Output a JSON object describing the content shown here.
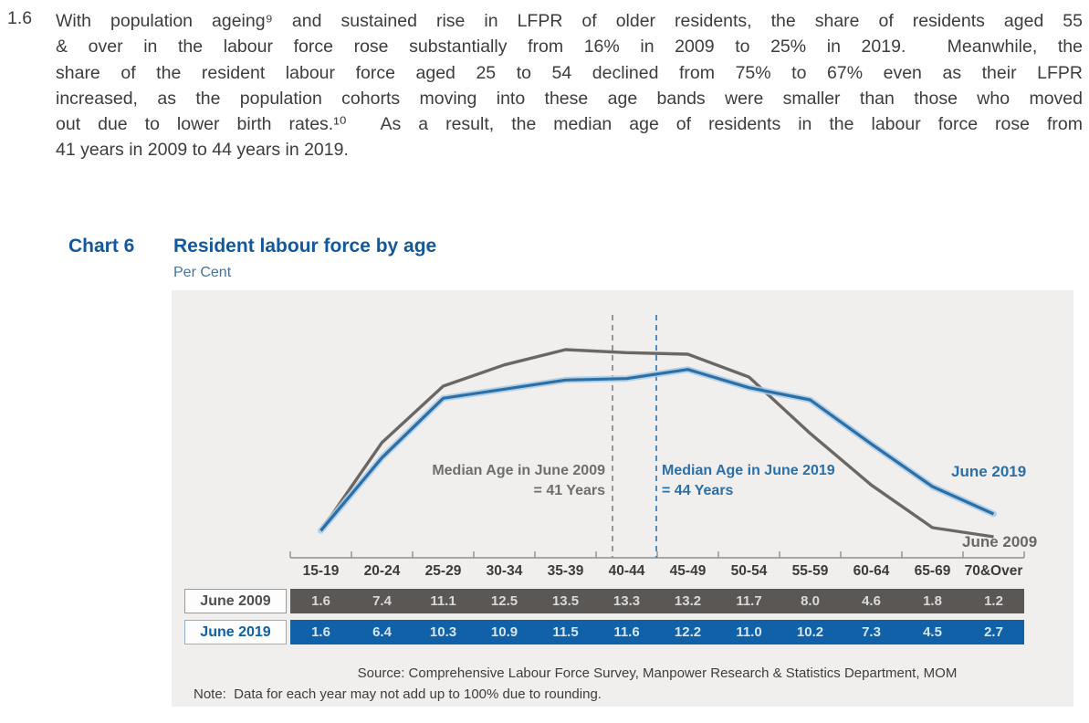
{
  "paragraph": {
    "number": "1.6",
    "lines": [
      "With population ageing⁹ and sustained rise in LFPR of older residents, the share of residents aged 55",
      "& over in the labour force rose substantially from 16% in 2009 to 25% in 2019.  Meanwhile, the",
      "share of the resident labour force aged 25 to 54 declined from 75% to 67% even as their LFPR",
      "increased, as the population cohorts moving into these age bands were smaller than those who moved",
      "out due to lower birth rates.¹⁰  As a result, the median age of residents in the labour force rose from",
      "41 years in 2009 to 44 years in 2019."
    ]
  },
  "chart_header": {
    "label": "Chart 6",
    "title": "Resident labour force by age",
    "unit": "Per Cent"
  },
  "chart_data": {
    "type": "line",
    "title": "Resident labour force by age",
    "ylabel": "Per Cent",
    "xlabel": "",
    "ylim": [
      0,
      14.5
    ],
    "grid": false,
    "categories": [
      "15-19",
      "20-24",
      "25-29",
      "30-34",
      "35-39",
      "40-44",
      "45-49",
      "50-54",
      "55-59",
      "60-64",
      "65-69",
      "70&Over"
    ],
    "series": [
      {
        "name": "June 2009",
        "color": "#6b6764",
        "values": [
          1.6,
          7.4,
          11.1,
          12.5,
          13.5,
          13.3,
          13.2,
          11.7,
          8.0,
          4.6,
          1.8,
          1.2
        ]
      },
      {
        "name": "June 2019",
        "color": "#2b6fa8",
        "values": [
          1.6,
          6.4,
          10.3,
          10.9,
          11.5,
          11.6,
          12.2,
          11.0,
          10.2,
          7.3,
          4.5,
          2.7
        ]
      }
    ],
    "median_lines": [
      {
        "age_years": 41,
        "color": "#8c8c8c",
        "style": "dashed"
      },
      {
        "age_years": 44,
        "color": "#4080b8",
        "style": "dashed"
      }
    ],
    "annotations": [
      {
        "line1": "Median Age in June 2009",
        "line2": "= 41 Years"
      },
      {
        "line1": "Median Age in June 2019",
        "line2": "= 44 Years"
      }
    ],
    "legend_position": "end-of-line labels"
  },
  "table": {
    "row_labels": [
      "June 2009",
      "June 2019"
    ]
  },
  "footer": {
    "source": "Source: Comprehensive Labour Force Survey, Manpower Research & Statistics Department, MOM",
    "note": "Note:  Data for each year may not add up to 100% due to rounding."
  },
  "colors": {
    "heading_blue": "#12589f",
    "unit_blue": "#48719c",
    "panel_background": "#f0efee",
    "line_2009": "#6b6764",
    "line_2019": "#2b6fa8",
    "line_2019_halo": "#abcbe2",
    "row_2009_background": "#5a5755",
    "row_2019_background": "#1061a8",
    "body_text": "#3d3d3d",
    "axis": "#8f8f8f"
  }
}
